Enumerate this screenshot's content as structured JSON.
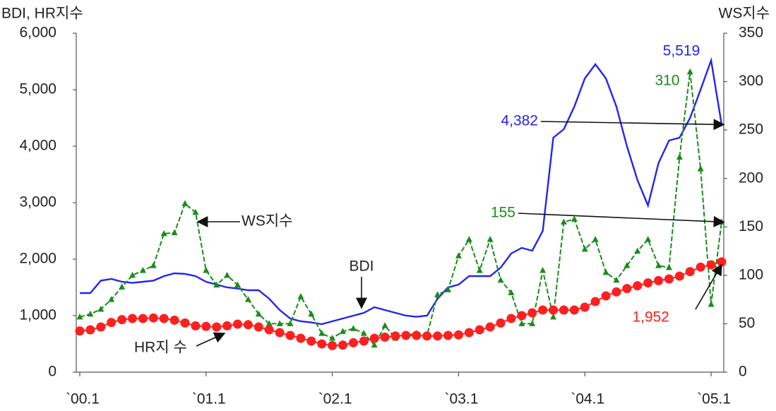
{
  "chart_data": {
    "type": "line",
    "y_label": "BDI, HR지수",
    "y2_label": "WS지수",
    "categories": [
      "`00.1",
      null,
      null,
      null,
      null,
      null,
      null,
      null,
      null,
      null,
      null,
      null,
      "`01.1",
      null,
      null,
      null,
      null,
      null,
      null,
      null,
      null,
      null,
      null,
      null,
      "`02.1",
      null,
      null,
      null,
      null,
      null,
      null,
      null,
      null,
      null,
      null,
      null,
      "`03.1",
      null,
      null,
      null,
      null,
      null,
      null,
      null,
      null,
      null,
      null,
      null,
      "`04.1",
      null,
      null,
      null,
      null,
      null,
      null,
      null,
      null,
      null,
      null,
      null,
      "`05.1",
      null
    ],
    "ylim": [
      0,
      6000
    ],
    "yticks": [
      0,
      {
        "value": 1000,
        "label": "1,000"
      },
      {
        "value": 2000,
        "label": "2,000"
      },
      {
        "value": 3000,
        "label": "3,000"
      },
      {
        "value": 4000,
        "label": "4,000"
      },
      {
        "value": 5000,
        "label": "5,000"
      },
      {
        "value": 6000,
        "label": "6,000"
      }
    ],
    "y2lim": [
      0,
      350
    ],
    "y2ticks": [
      0,
      50,
      100,
      150,
      200,
      250,
      300,
      350
    ],
    "series": [
      {
        "name": "BDI",
        "color": "#2424f0",
        "marker": "none",
        "values": [
          1400,
          1400,
          1620,
          1650,
          1600,
          1580,
          1600,
          1620,
          1700,
          1750,
          1740,
          1700,
          1600,
          1550,
          1500,
          1480,
          1450,
          1450,
          1300,
          1100,
          950,
          900,
          880,
          850,
          900,
          950,
          1000,
          1050,
          1150,
          1100,
          1050,
          1000,
          980,
          1000,
          1300,
          1500,
          1550,
          1700,
          1700,
          1700,
          1850,
          2100,
          2200,
          2150,
          2500,
          4150,
          4300,
          4700,
          5200,
          5450,
          5200,
          4700,
          4000,
          3400,
          2950,
          3700,
          4100,
          4150,
          4500,
          5000,
          5519,
          4382
        ]
      },
      {
        "name": "WS지수",
        "color": "#1a8c1a",
        "marker": "triangle",
        "axis": "y2",
        "values": [
          57,
          60,
          65,
          75,
          88,
          100,
          105,
          110,
          143,
          144,
          174,
          165,
          105,
          90,
          100,
          90,
          75,
          60,
          50,
          50,
          50,
          78,
          60,
          40,
          35,
          42,
          45,
          40,
          28,
          48,
          35,
          38,
          40,
          38,
          80,
          85,
          120,
          137,
          105,
          137,
          95,
          82,
          50,
          50,
          105,
          57,
          155,
          158,
          127,
          137,
          103,
          95,
          110,
          125,
          137,
          110,
          108,
          222,
          310,
          210,
          70,
          155
        ]
      },
      {
        "name": "HR지 수",
        "color": "#ff1f1f",
        "marker": "circle",
        "values": [
          730,
          750,
          800,
          880,
          930,
          950,
          950,
          960,
          950,
          920,
          870,
          820,
          810,
          800,
          820,
          850,
          840,
          800,
          750,
          700,
          650,
          600,
          550,
          500,
          470,
          480,
          520,
          550,
          600,
          620,
          640,
          650,
          650,
          640,
          640,
          650,
          660,
          700,
          750,
          800,
          870,
          950,
          1000,
          1050,
          1100,
          1100,
          1100,
          1100,
          1150,
          1250,
          1350,
          1420,
          1480,
          1530,
          1580,
          1620,
          1650,
          1700,
          1780,
          1860,
          1900,
          1952
        ]
      }
    ],
    "annotations": [
      "5,519",
      "310",
      "4,382",
      "155",
      "1,952"
    ]
  }
}
